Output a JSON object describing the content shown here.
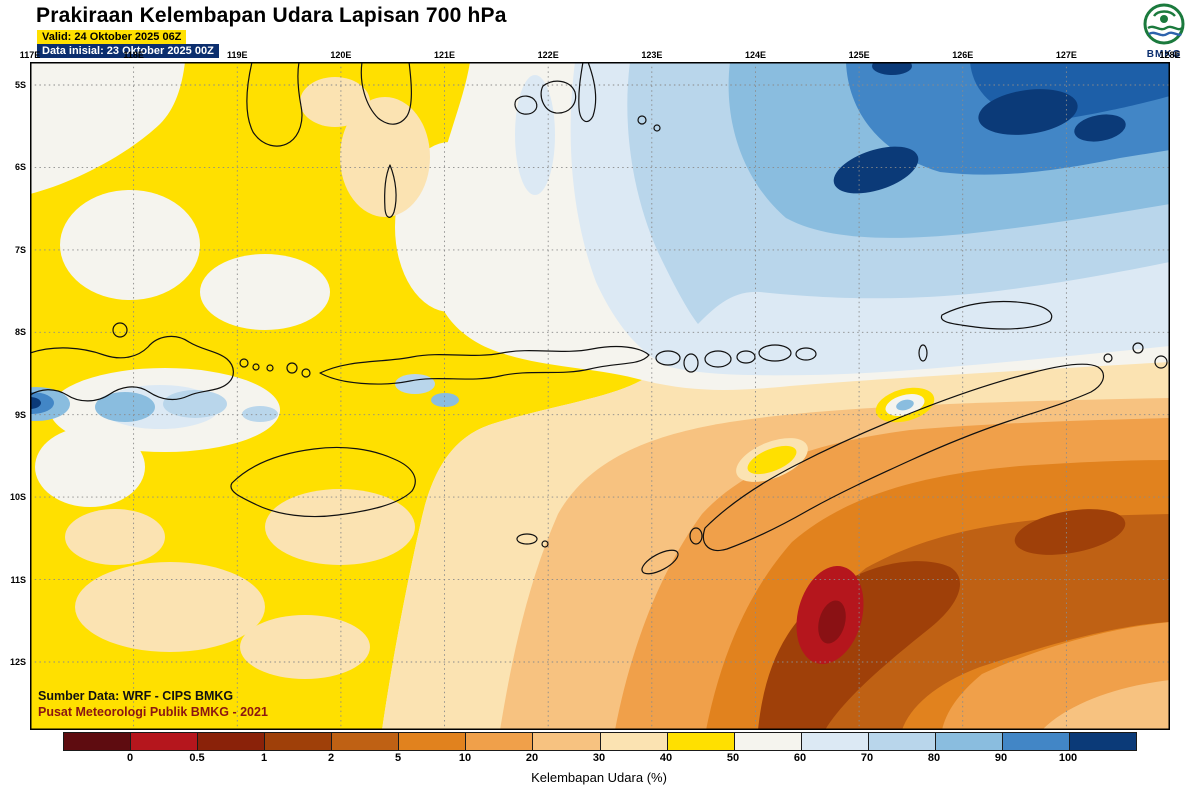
{
  "header": {
    "title": "Prakiraan Kelembapan Udara Lapisan 700 hPa",
    "valid": "Valid: 24 Oktober 2025 06Z",
    "init": "Data inisial: 23 Oktober 2025 00Z",
    "logo_text": "BMKG"
  },
  "map": {
    "lon_labels": [
      "117E",
      "118E",
      "119E",
      "120E",
      "121E",
      "122E",
      "123E",
      "124E",
      "125E",
      "126E",
      "127E",
      "128E"
    ],
    "lat_labels": [
      "5S",
      "6S",
      "7S",
      "8S",
      "9S",
      "10S",
      "11S",
      "12S"
    ],
    "source_line1": "Sumber Data: WRF - CIPS BMKG",
    "source_line2": "Pusat Meteorologi Publik BMKG - 2021"
  },
  "colorbar": {
    "title": "Kelembapan Udara (%)",
    "tick_labels": [
      "0",
      "0.5",
      "1",
      "2",
      "5",
      "10",
      "20",
      "30",
      "40",
      "50",
      "60",
      "70",
      "80",
      "90",
      "100"
    ],
    "segment_colors": [
      "#5e0c10",
      "#b5161d",
      "#8a2209",
      "#9f4009",
      "#bf6114",
      "#e1821e",
      "#f0a04a",
      "#f7c280",
      "#fbe3b2",
      "#ffe000",
      "#f5f4ee",
      "#dce9f4",
      "#b9d6eb",
      "#8abddf",
      "#4286c6",
      "#0b3a78"
    ],
    "accent_colors": {
      "low_extreme": "#b5161d",
      "high_extreme": "#0b3a78",
      "yellow_field": "#ffe000"
    }
  }
}
